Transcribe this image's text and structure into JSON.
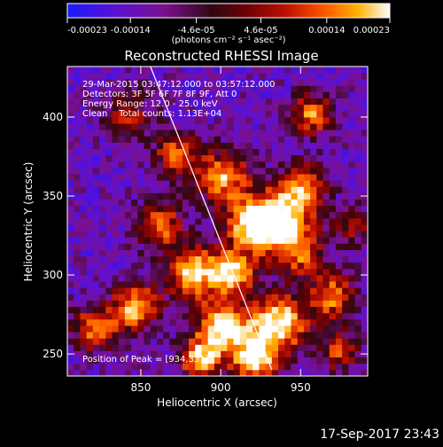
{
  "colorbar": {
    "tick_labels": [
      "-0.00023",
      "-0.00014",
      "-4.6e-05",
      "4.6e-05",
      "0.00014",
      "0.00023"
    ],
    "tick_values": [
      -0.00023,
      -0.00014,
      -4.6e-05,
      4.6e-05,
      0.00014,
      0.00023
    ],
    "range": [
      -0.00023,
      0.00023
    ],
    "units_label": "(photons cm⁻² s⁻¹ asec⁻²)"
  },
  "chart_data": {
    "type": "heatmap",
    "title": "Reconstructed RHESSI Image",
    "xlabel": "Heliocentric X (arcsec)",
    "ylabel": "Heliocentric Y (arcsec)",
    "xlim": [
      804,
      992
    ],
    "ylim": [
      236,
      432
    ],
    "xticks": [
      850,
      900,
      950
    ],
    "yticks": [
      250,
      300,
      350,
      400
    ],
    "xtick_labels": [
      "850",
      "900",
      "950"
    ],
    "ytick_labels": [
      "250",
      "300",
      "350",
      "400"
    ],
    "limb_line": {
      "x": [
        856,
        932
      ],
      "y": [
        432,
        240
      ]
    },
    "annotations": [
      "29-Mar-2015 03:47:12.000 to 03:57:12.000",
      "Detectors: 3F 5F 6F 7F 8F 9F, Att 0",
      "Energy Range: 12.0 - 25.0 keV",
      "Clean    Total counts: 1.13E+04"
    ],
    "peak_label": "Position of Peak = [934,331]",
    "peak": [
      934,
      331
    ],
    "total_counts": "1.13E+04",
    "grid": false
  },
  "timestamp": "17-Sep-2017 23:43",
  "colors": {
    "background": "#000000",
    "text": "#ffffff",
    "limb": "#ffffff",
    "colormap": [
      "#0000ff",
      "#6000d0",
      "#8a3aa8",
      "#2a0820",
      "#5a0010",
      "#a00000",
      "#e83000",
      "#ff8000",
      "#ffc800",
      "#ffffff"
    ]
  }
}
